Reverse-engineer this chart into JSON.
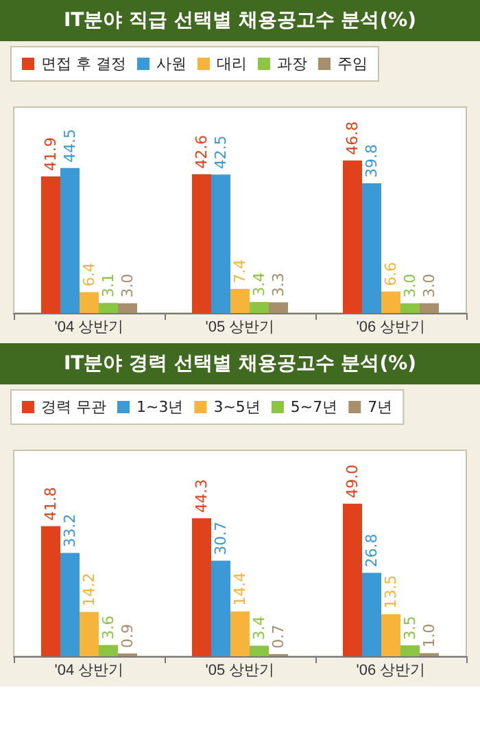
{
  "chart_data": [
    {
      "type": "bar",
      "title": "IT분야 직급 선택별 채용공고수 분석(%)",
      "categories": [
        "'04 상반기",
        "'05 상반기",
        "'06 상반기"
      ],
      "series": [
        {
          "name": "면접 후 결정",
          "color": "#e0431c",
          "values": [
            41.9,
            42.6,
            46.8
          ],
          "value_labels": [
            "41.9",
            "42.6",
            "46.8"
          ]
        },
        {
          "name": "사원",
          "color": "#3b9ad6",
          "values": [
            44.5,
            42.5,
            39.8
          ],
          "value_labels": [
            "44.5",
            "42.5",
            "39.8"
          ]
        },
        {
          "name": "대리",
          "color": "#f6b43a",
          "values": [
            6.4,
            7.4,
            6.6
          ],
          "value_labels": [
            "6.4",
            "7.4",
            "6.6"
          ]
        },
        {
          "name": "과장",
          "color": "#8cc443",
          "values": [
            3.1,
            3.4,
            3.0
          ],
          "value_labels": [
            "3.1",
            "3.4",
            "3.0"
          ]
        },
        {
          "name": "주임",
          "color": "#a88f6c",
          "values": [
            3.0,
            3.3,
            3.0
          ],
          "value_labels": [
            "3.0",
            "3.3",
            "3.0"
          ]
        }
      ],
      "legend": "top"
    },
    {
      "type": "bar",
      "title": "IT분야 경력 선택별 채용공고수 분석(%)",
      "categories": [
        "'04 상반기",
        "'05 상반기",
        "'06 상반기"
      ],
      "series": [
        {
          "name": "경력 무관",
          "color": "#e0431c",
          "values": [
            41.8,
            44.3,
            49.0
          ],
          "value_labels": [
            "41.8",
            "44.3",
            "49.0"
          ]
        },
        {
          "name": "1~3년",
          "color": "#3b9ad6",
          "values": [
            33.2,
            30.7,
            26.8
          ],
          "value_labels": [
            "33.2",
            "30.7",
            "26.8"
          ]
        },
        {
          "name": "3~5년",
          "color": "#f6b43a",
          "values": [
            14.2,
            14.4,
            13.5
          ],
          "value_labels": [
            "14.2",
            "14.4",
            "13.5"
          ]
        },
        {
          "name": "5~7년",
          "color": "#8cc443",
          "values": [
            3.6,
            3.4,
            3.5
          ],
          "value_labels": [
            "3.6",
            "3.4",
            "3.5"
          ]
        },
        {
          "name": "7년",
          "color": "#a88f6c",
          "values": [
            0.9,
            0.7,
            1.0
          ],
          "value_labels": [
            "0.9",
            "0.7",
            "1.0"
          ]
        }
      ],
      "legend": "top"
    }
  ]
}
